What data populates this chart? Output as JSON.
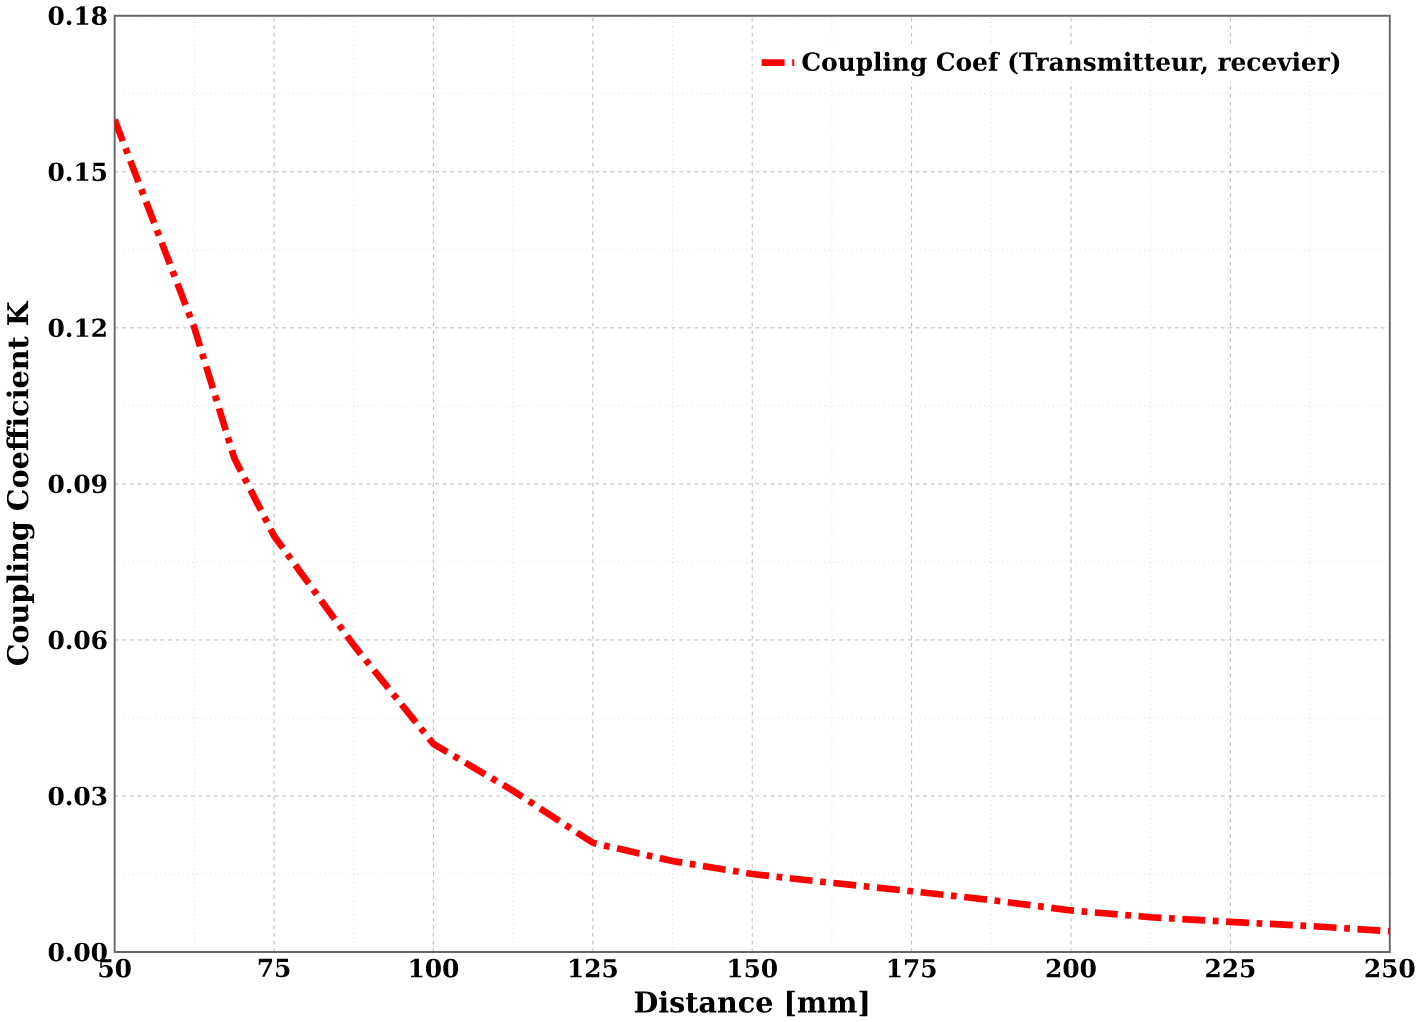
{
  "chart_data": {
    "type": "line",
    "xlabel": "Distance [mm]",
    "ylabel": "Coupling Coefficient K",
    "x": [
      50,
      56.25,
      62.5,
      68.75,
      75,
      87.5,
      100,
      112.5,
      125,
      137.5,
      150,
      162.5,
      175,
      187.5,
      200,
      212.5,
      225,
      237.5,
      250
    ],
    "series": [
      {
        "name": "Coupling Coef (Transmitteur, recevier)",
        "color": "#ff0000",
        "values": [
          0.16,
          0.14,
          0.12,
          0.095,
          0.08,
          0.059,
          0.04,
          0.031,
          0.021,
          0.0175,
          0.015,
          0.0133,
          0.0117,
          0.01,
          0.008,
          0.0067,
          0.0058,
          0.005,
          0.004
        ]
      }
    ],
    "xlim": [
      50,
      250
    ],
    "ylim": [
      0,
      0.18
    ],
    "xticks": [
      50,
      75,
      100,
      125,
      150,
      175,
      200,
      225,
      250
    ],
    "yticks": [
      {
        "value": 0,
        "label": "0.00"
      },
      {
        "value": 0.03,
        "label": "0.03"
      },
      {
        "value": 0.06,
        "label": "0.06"
      },
      {
        "value": 0.09,
        "label": "0.09"
      },
      {
        "value": 0.12,
        "label": "0.12"
      },
      {
        "value": 0.15,
        "label": "0.15"
      },
      {
        "value": 0.18,
        "label": "0.18"
      }
    ],
    "grid": true,
    "legend": "top right",
    "marker": "none",
    "line_style": "dashed"
  }
}
